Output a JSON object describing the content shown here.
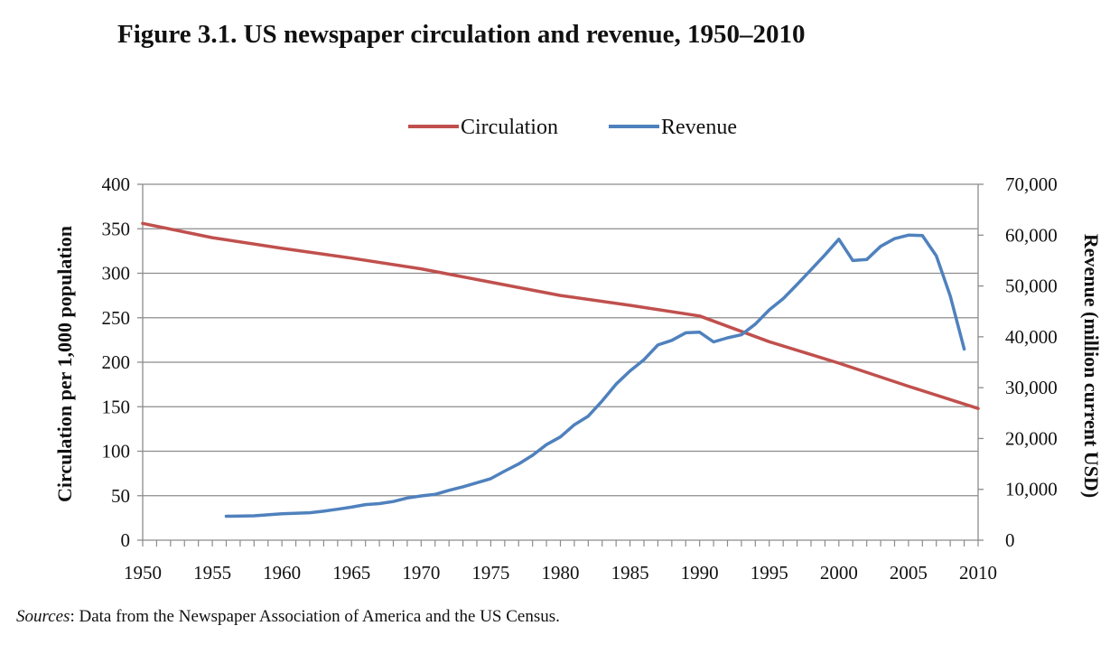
{
  "figure": {
    "title": "Figure 3.1. US newspaper circulation and revenue, 1950–2010",
    "sources_label": "Sources",
    "sources_text": ": Data from the Newspaper Association of America and the US Census."
  },
  "chart_data": {
    "type": "line",
    "xlabel": "",
    "ylabel_left": "Circulation per 1,000 population",
    "ylabel_right": "Revenue (million current USD)",
    "x_ticks": [
      "1950",
      "1955",
      "1960",
      "1965",
      "1970",
      "1975",
      "1980",
      "1985",
      "1990",
      "1995",
      "2000",
      "2005",
      "2010"
    ],
    "y_left_ticks": [
      "0",
      "50",
      "100",
      "150",
      "200",
      "250",
      "300",
      "350",
      "400"
    ],
    "y_right_ticks": [
      "0",
      "10,000",
      "20,000",
      "30,000",
      "40,000",
      "50,000",
      "60,000",
      "70,000"
    ],
    "xlim": [
      1950,
      2010
    ],
    "ylim_left": [
      0,
      400
    ],
    "ylim_right": [
      0,
      70000
    ],
    "grid": true,
    "legend_position": "top-center",
    "series": [
      {
        "name": "Circulation",
        "axis": "left",
        "color": "#c0504d",
        "x": [
          1950,
          1955,
          1960,
          1965,
          1970,
          1975,
          1980,
          1985,
          1990,
          1995,
          2000,
          2005,
          2010
        ],
        "y": [
          356,
          340,
          328,
          317,
          305,
          290,
          275,
          264,
          252,
          223,
          199,
          173,
          148
        ]
      },
      {
        "name": "Revenue",
        "axis": "right",
        "color": "#4f81bd",
        "x": [
          1956,
          1958,
          1959,
          1960,
          1962,
          1963,
          1964,
          1965,
          1966,
          1967,
          1968,
          1969,
          1970,
          1971,
          1972,
          1973,
          1974,
          1975,
          1976,
          1977,
          1978,
          1979,
          1980,
          1981,
          1982,
          1983,
          1984,
          1985,
          1986,
          1987,
          1988,
          1989,
          1990,
          1991,
          1992,
          1993,
          1994,
          1995,
          1996,
          1997,
          1998,
          1999,
          2000,
          2001,
          2002,
          2003,
          2004,
          2005,
          2006,
          2007,
          2008,
          2009
        ],
        "y": [
          4700,
          4800,
          5000,
          5200,
          5400,
          5700,
          6100,
          6500,
          7000,
          7200,
          7600,
          8300,
          8700,
          9000,
          9800,
          10500,
          11300,
          12100,
          13600,
          15000,
          16700,
          18800,
          20300,
          22700,
          24400,
          27400,
          30700,
          33300,
          35500,
          38400,
          39300,
          40800,
          40900,
          39000,
          39800,
          40400,
          42500,
          45300,
          47500,
          50300,
          53200,
          56100,
          59200,
          55000,
          55200,
          57800,
          59300,
          60000,
          59900,
          55900,
          48000,
          37600
        ]
      }
    ]
  }
}
